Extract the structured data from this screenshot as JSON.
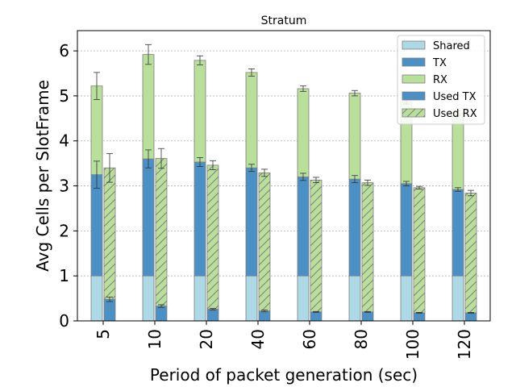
{
  "chart_data": {
    "type": "bar",
    "title": "Stratum",
    "xlabel": "Period of packet generation (sec)",
    "ylabel": "Avg Cells per SlotFrame",
    "categories": [
      "5",
      "10",
      "20",
      "40",
      "60",
      "80",
      "100",
      "120"
    ],
    "ylim": [
      0,
      6.45
    ],
    "yticks": [
      0,
      1,
      2,
      3,
      4,
      5,
      6
    ],
    "grid": true,
    "legend_position": "top-right",
    "colors": {
      "shared": "#add8e6",
      "tx": "#4a90c4",
      "rx": "#b8e09a",
      "used_tx": "#4a90c4",
      "used_rx": "#b8e09a",
      "edge": "#7f7f7f"
    },
    "allocated_stack": {
      "series": [
        {
          "name": "Shared",
          "values": [
            1,
            1,
            1,
            1,
            1,
            1,
            1,
            1
          ]
        },
        {
          "name": "TX",
          "values": [
            2.25,
            2.6,
            2.53,
            2.4,
            2.2,
            2.15,
            2.05,
            1.92
          ]
        },
        {
          "name": "RX",
          "values": [
            1.97,
            2.32,
            2.26,
            2.12,
            1.96,
            1.91,
            1.82,
            1.7
          ]
        }
      ],
      "tx_error": [
        0.3,
        0.2,
        0.1,
        0.08,
        0.08,
        0.08,
        0.05,
        0.04
      ],
      "total_error": [
        0.3,
        0.22,
        0.1,
        0.08,
        0.06,
        0.06,
        0.05,
        0.05
      ]
    },
    "used_stack": {
      "series": [
        {
          "name": "Used TX",
          "values": [
            0.48,
            0.33,
            0.26,
            0.22,
            0.2,
            0.2,
            0.18,
            0.18
          ]
        },
        {
          "name": "Used RX",
          "values": [
            2.92,
            3.28,
            3.2,
            3.07,
            2.93,
            2.87,
            2.78,
            2.66
          ]
        }
      ],
      "tx_error": [
        0.05,
        0.03,
        0.02,
        0.02,
        0.01,
        0.01,
        0.01,
        0.01
      ],
      "total_error": [
        0.32,
        0.22,
        0.1,
        0.08,
        0.06,
        0.06,
        0.03,
        0.06
      ]
    },
    "legend": [
      "Shared",
      "TX",
      "RX",
      "Used TX",
      "Used RX"
    ]
  }
}
